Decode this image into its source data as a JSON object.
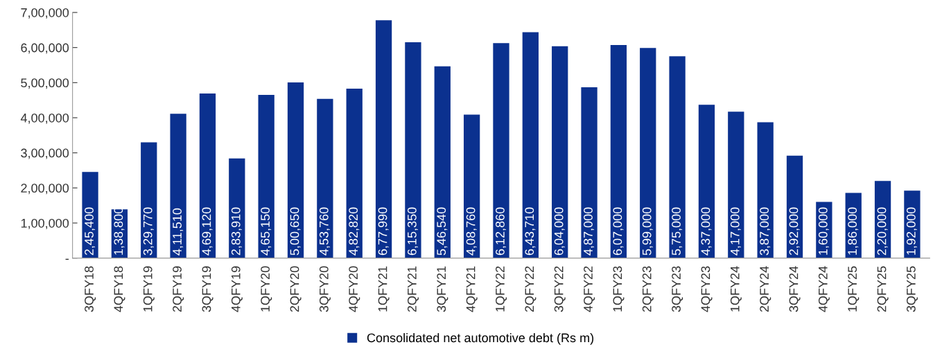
{
  "chart_data": {
    "type": "bar",
    "categories": [
      "3QFY18",
      "4QFY18",
      "1QFY19",
      "2QFY19",
      "3QFY19",
      "4QFY19",
      "1QFY20",
      "2QFY20",
      "3QFY20",
      "4QFY20",
      "1QFY21",
      "2QFY21",
      "3QFY21",
      "4QFY21",
      "1QFY22",
      "2QFY22",
      "3QFY22",
      "4QFY22",
      "1QFY23",
      "2QFY23",
      "3QFY23",
      "4QFY23",
      "1QFY24",
      "2QFY24",
      "3QFY24",
      "4QFY24",
      "1QFY25",
      "2QFY25",
      "3QFY25"
    ],
    "series": [
      {
        "name": "Consolidated net automotive debt (Rs m)",
        "color": "#0b318f",
        "values": [
          245400,
          138800,
          329770,
          411510,
          469120,
          283910,
          465150,
          500650,
          453760,
          482820,
          677990,
          615350,
          546540,
          408760,
          612860,
          643710,
          604000,
          487000,
          607000,
          599000,
          575000,
          437000,
          417000,
          387000,
          292000,
          160000,
          186000,
          220000,
          192000
        ],
        "value_labels": [
          "2,45,400",
          "1,38,800",
          "3,29,770",
          "4,11,510",
          "4,69,120",
          "2,83,910",
          "4,65,150",
          "5,00,650",
          "4,53,760",
          "4,82,820",
          "6,77,990",
          "6,15,350",
          "5,46,540",
          "4,08,760",
          "6,12,860",
          "6,43,710",
          "6,04,000",
          "4,87,000",
          "6,07,000",
          "5,99,000",
          "5,75,000",
          "4,37,000",
          "4,17,000",
          "3,87,000",
          "2,92,000",
          "1,60,000",
          "1,86,000",
          "2,20,000",
          "1,92,000"
        ]
      }
    ],
    "ylim": [
      0,
      700000
    ],
    "yticks": [
      {
        "value": 0,
        "label": "-"
      },
      {
        "value": 100000,
        "label": "1,00,000"
      },
      {
        "value": 200000,
        "label": "2,00,000"
      },
      {
        "value": 300000,
        "label": "3,00,000"
      },
      {
        "value": 400000,
        "label": "4,00,000"
      },
      {
        "value": 500000,
        "label": "5,00,000"
      },
      {
        "value": 600000,
        "label": "6,00,000"
      },
      {
        "value": 700000,
        "label": "7,00,000"
      }
    ],
    "grid": false,
    "legend": "bottom"
  }
}
